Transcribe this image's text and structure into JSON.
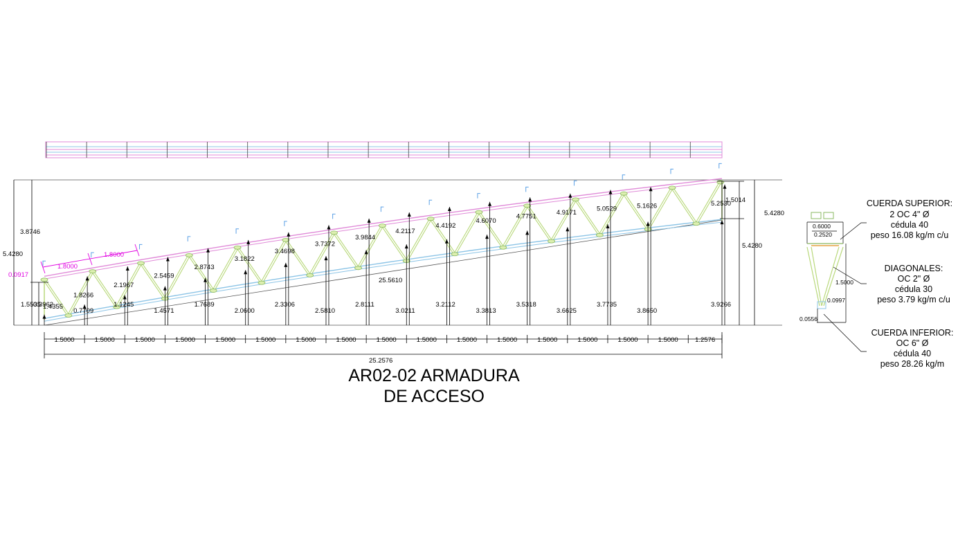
{
  "title": {
    "line1": "AR02-02 ARMADURA",
    "line2": "DE ACCESO"
  },
  "colors": {
    "top_chord": "#e08ad8",
    "bottom_chord": "#8cc4e6",
    "diagonals": "#b8d87a",
    "magenta_dim": "#e000e0",
    "purlin": "#5aa0e6",
    "dim_line": "#000000"
  },
  "panel_dims": [
    "1.5000",
    "1.5000",
    "1.5000",
    "1.5000",
    "1.5000",
    "1.5000",
    "1.5000",
    "1.5000",
    "1.5000",
    "1.5000",
    "1.5000",
    "1.5000",
    "1.5000",
    "1.5000",
    "1.5000",
    "1.5000",
    "1.2576"
  ],
  "total_length": "25.2576",
  "top_heights": [
    "1.8266",
    "2.1967",
    "2.5459",
    "2.8743",
    "3.1822",
    "3.4698",
    "3.7372",
    "3.9844",
    "4.2117",
    "4.4192",
    "4.6070",
    "4.7751",
    "4.9171",
    "5.0529",
    "5.1626",
    "5.2530"
  ],
  "bottom_heights": [
    "0.3962",
    "0.7709",
    "1.1245",
    "1.4571",
    "1.7689",
    "2.0600",
    "2.3306",
    "2.5810",
    "2.8111",
    "3.0211",
    "3.2112",
    "3.3813",
    "3.5318",
    "3.6625",
    "3.7735",
    "3.8650",
    "3.9266"
  ],
  "left_dims": {
    "d1": "3.8746",
    "d2": "5.4280",
    "d3": "1.5535",
    "d4": "1.4355",
    "d5": "0.0917"
  },
  "magenta_dims": [
    "1.8000",
    "1.8000"
  ],
  "chord_length": "25.5610",
  "right_dims": {
    "end_depth": "1.5014",
    "h1": "5.4280",
    "h2": "5.4280"
  },
  "section": {
    "top_width": "0.6000",
    "inner_width": "0.2520",
    "depth": "1.5000",
    "offset_a": "0.0997",
    "offset_b": "0.0556"
  },
  "notes": {
    "top_chord": [
      "CUERDA SUPERIOR:",
      "2 OC 4\" Ø",
      "cédula 40",
      "peso 16.08 kg/m c/u"
    ],
    "diagonals": [
      "DIAGONALES:",
      "OC 2\" Ø",
      "cédula 30",
      "peso 3.79 kg/m c/u"
    ],
    "bottom_chord": [
      "CUERDA INFERIOR:",
      "OC 6\" Ø",
      "cédula 40",
      "peso 28.26 kg/m"
    ]
  }
}
